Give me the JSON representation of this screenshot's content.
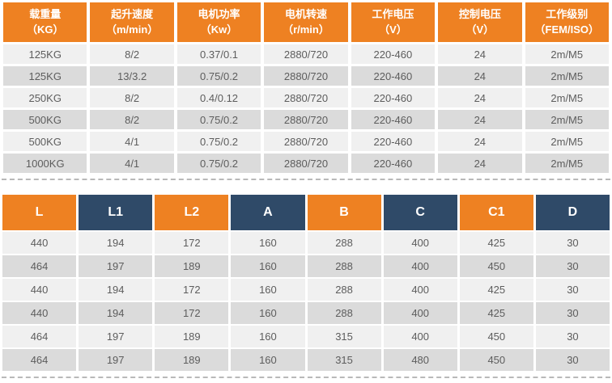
{
  "colors": {
    "orange": "#EE8122",
    "navy": "#2F4A68",
    "row_light": "#F0F0F0",
    "row_dark": "#DBDBDB",
    "cell_text": "#5D5D5D",
    "dash": "#B9B9B9",
    "header_text": "#FFFFFF"
  },
  "spec": {
    "headers": [
      {
        "title": "载重量",
        "unit": "（KG）"
      },
      {
        "title": "起升速度",
        "unit": "（m/min）"
      },
      {
        "title": "电机功率",
        "unit": "（Kw）"
      },
      {
        "title": "电机转速",
        "unit": "（r/min）"
      },
      {
        "title": "工作电压",
        "unit": "（V）"
      },
      {
        "title": "控制电压",
        "unit": "（V）"
      },
      {
        "title": "工作级别",
        "unit": "（FEM/ISO）"
      }
    ],
    "rows": [
      [
        "125KG",
        "8/2",
        "0.37/0.1",
        "2880/720",
        "220-460",
        "24",
        "2m/M5"
      ],
      [
        "125KG",
        "13/3.2",
        "0.75/0.2",
        "2880/720",
        "220-460",
        "24",
        "2m/M5"
      ],
      [
        "250KG",
        "8/2",
        "0.4/0.12",
        "2880/720",
        "220-460",
        "24",
        "2m/M5"
      ],
      [
        "500KG",
        "8/2",
        "0.75/0.2",
        "2880/720",
        "220-460",
        "24",
        "2m/M5"
      ],
      [
        "500KG",
        "4/1",
        "0.75/0.2",
        "2880/720",
        "220-460",
        "24",
        "2m/M5"
      ],
      [
        "1000KG",
        "4/1",
        "0.75/0.2",
        "2880/720",
        "220-460",
        "24",
        "2m/M5"
      ]
    ]
  },
  "dim": {
    "headers": [
      "L",
      "L1",
      "L2",
      "A",
      "B",
      "C",
      "C1",
      "D"
    ],
    "rows": [
      [
        "440",
        "194",
        "172",
        "160",
        "288",
        "400",
        "425",
        "30"
      ],
      [
        "464",
        "197",
        "189",
        "160",
        "288",
        "400",
        "450",
        "30"
      ],
      [
        "440",
        "194",
        "172",
        "160",
        "288",
        "400",
        "425",
        "30"
      ],
      [
        "440",
        "194",
        "172",
        "160",
        "288",
        "400",
        "425",
        "30"
      ],
      [
        "464",
        "197",
        "189",
        "160",
        "315",
        "400",
        "450",
        "30"
      ],
      [
        "464",
        "197",
        "189",
        "160",
        "315",
        "480",
        "450",
        "30"
      ]
    ]
  }
}
